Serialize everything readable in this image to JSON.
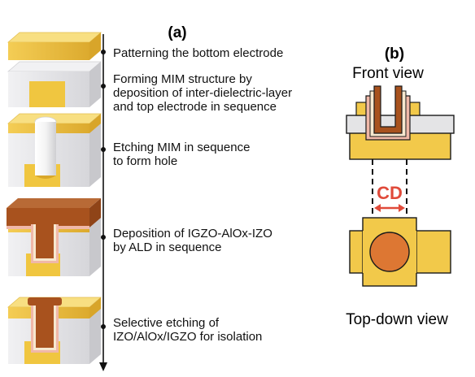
{
  "panel_a": {
    "title": "(a)",
    "steps": [
      {
        "lines": [
          "Patterning the bottom electrode"
        ]
      },
      {
        "lines": [
          "Forming MIM structure by",
          "deposition of inter-dielectric-layer",
          "and top electrode in sequence"
        ]
      },
      {
        "lines": [
          "Etching MIM in sequence",
          "to form hole"
        ]
      },
      {
        "lines": [
          "Deposition of IGZO-AlOx-IZO",
          "by ALD in sequence"
        ]
      },
      {
        "lines": [
          "Selective etching of",
          "IZO/AlOx/IGZO for isolation"
        ]
      }
    ]
  },
  "panel_b": {
    "title": "(b)",
    "front_view_label": "Front view",
    "dimension_label": "CD",
    "top_down_label": "Top-down view"
  },
  "colors": {
    "electrode_gold": "#f2c94a",
    "electrode_gold_dark": "#d9a72a",
    "dielectric_gray": "#e6e6e8",
    "dielectric_gray_dark": "#c9c9cc",
    "igzo_brown": "#a8521e",
    "izo_pink": "#f0b8a8",
    "alox_cream": "#f7e8cf",
    "hole_orange": "#dd7733",
    "cd_red": "#e04a3a"
  }
}
